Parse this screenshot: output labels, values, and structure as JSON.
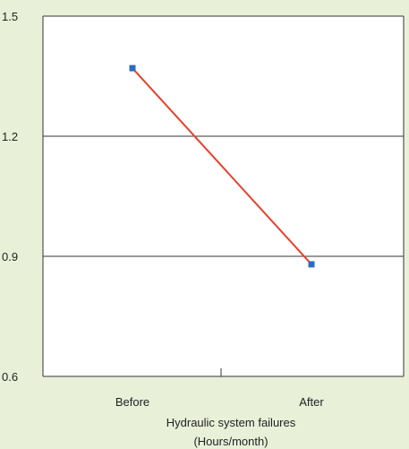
{
  "chart_data": {
    "type": "line",
    "title": "",
    "xlabel": "Hydraulic system failures",
    "xlabel_unit": "(Hours/month)",
    "ylabel": "",
    "categories": [
      "Before",
      "After"
    ],
    "series": [
      {
        "values": [
          1.37,
          0.88
        ],
        "line_color": "#e8402a",
        "marker_color": "#2a6bc0"
      }
    ],
    "ylim": [
      0.6,
      1.5
    ],
    "yticks": [
      0.6,
      0.9,
      1.2,
      1.5
    ],
    "ytick_labels": [
      "0.6",
      "0.9",
      "1.2",
      "1.5"
    ],
    "grid": "horizontal",
    "legend": "none"
  },
  "colors": {
    "background": "#e8f0d8",
    "plot_background": "#ffffff",
    "gridline": "#333333",
    "axis": "#333333",
    "text": "#222222"
  }
}
